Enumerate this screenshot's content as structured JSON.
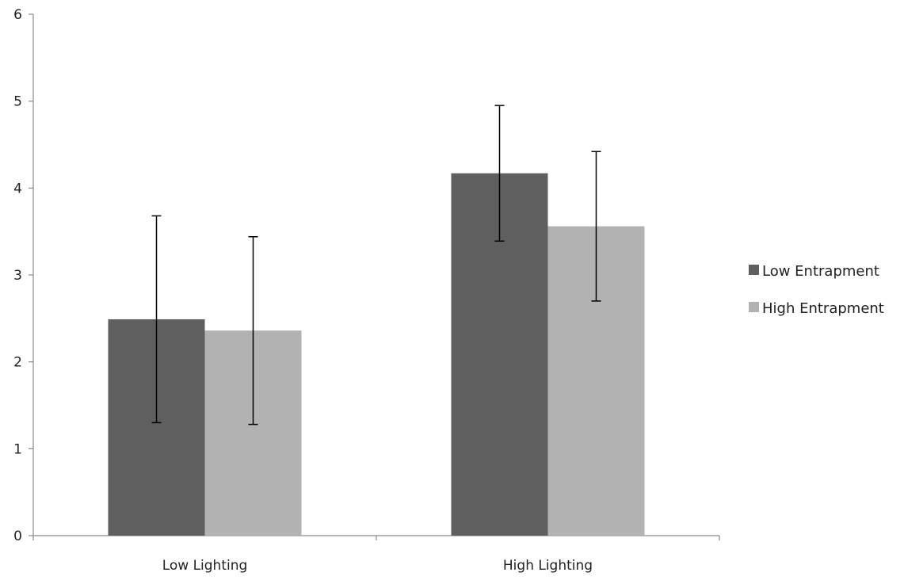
{
  "chart_data": {
    "type": "bar",
    "title": "",
    "xlabel": "",
    "ylabel": "",
    "categories": [
      "Low Lighting",
      "High Lighting"
    ],
    "series": [
      {
        "name": "Low Entrapment",
        "color": "#5f5f5f",
        "values": [
          2.49,
          4.17
        ],
        "error": [
          1.19,
          0.78
        ]
      },
      {
        "name": "High Entrapment",
        "color": "#b2b2b2",
        "values": [
          2.36,
          3.56
        ],
        "error": [
          1.08,
          0.86
        ]
      }
    ],
    "yticks": [
      "0",
      "1",
      "2",
      "3",
      "4",
      "5",
      "6"
    ],
    "ylim": [
      0,
      6
    ],
    "grid": false,
    "legend_position": "right"
  }
}
